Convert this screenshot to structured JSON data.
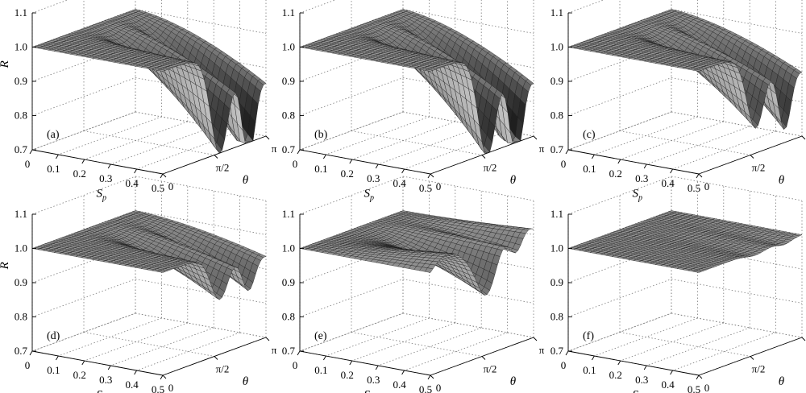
{
  "chart_data": [
    {
      "type": "surface",
      "panel_label": "(a)",
      "xlabel": "Sp",
      "ylabel": "θ",
      "zlabel": "R",
      "x_ticks": [
        "0",
        "0.1",
        "0.2",
        "0.3",
        "0.4",
        "0.5"
      ],
      "y_ticks": [
        "0",
        "π/2",
        "π"
      ],
      "z_ticks": [
        "0.7",
        "0.8",
        "0.9",
        "1.0",
        "1.1"
      ],
      "xlim": [
        0,
        0.5
      ],
      "ylim": [
        0,
        3.1416
      ],
      "zlim": [
        0.7,
        1.1
      ],
      "grid": true,
      "z_min_values": [
        0.72,
        0.73
      ],
      "z_at_edge_theta_pi": 0.77
    },
    {
      "type": "surface",
      "panel_label": "(b)",
      "xlabel": "Sp",
      "ylabel": "θ",
      "zlabel": "",
      "x_ticks": [
        "0",
        "0.1",
        "0.2",
        "0.3",
        "0.4",
        "0.5"
      ],
      "y_ticks": [
        "0",
        "π/2",
        "π"
      ],
      "z_ticks": [
        "0.7",
        "0.8",
        "0.9",
        "1.0",
        "1.1"
      ],
      "xlim": [
        0,
        0.5
      ],
      "ylim": [
        0,
        3.1416
      ],
      "zlim": [
        0.7,
        1.1
      ],
      "grid": true,
      "z_min_values": [
        0.71,
        0.72
      ],
      "z_at_edge_theta_pi": 0.77
    },
    {
      "type": "surface",
      "panel_label": "(c)",
      "xlabel": "Sp",
      "ylabel": "θ",
      "zlabel": "",
      "x_ticks": [
        "0",
        "0.1",
        "0.2",
        "0.3",
        "0.4",
        "0.5"
      ],
      "y_ticks": [
        "0",
        "π/2",
        "π"
      ],
      "z_ticks": [
        "0.7",
        "0.8",
        "0.9",
        "1.0",
        "1.1"
      ],
      "xlim": [
        0,
        0.5
      ],
      "ylim": [
        0,
        3.1416
      ],
      "zlim": [
        0.7,
        1.1
      ],
      "grid": true,
      "z_min_values": [
        0.79,
        0.8
      ],
      "z_at_edge_theta_pi": 0.82
    },
    {
      "type": "surface",
      "panel_label": "(d)",
      "xlabel": "Sp",
      "ylabel": "θ",
      "zlabel": "R",
      "x_ticks": [
        "0",
        "0.1",
        "0.2",
        "0.3",
        "0.4",
        "0.5"
      ],
      "y_ticks": [
        "0",
        "π/2",
        "π"
      ],
      "z_ticks": [
        "0.7",
        "0.8",
        "0.9",
        "1.0",
        "1.1"
      ],
      "xlim": [
        0,
        0.5
      ],
      "ylim": [
        0,
        3.1416
      ],
      "zlim": [
        0.7,
        1.1
      ],
      "grid": true,
      "z_min_values": [
        0.87,
        0.89
      ],
      "z_at_edge_theta_pi": 0.9
    },
    {
      "type": "surface",
      "panel_label": "(e)",
      "xlabel": "Sp",
      "ylabel": "θ",
      "zlabel": "",
      "x_ticks": [
        "0",
        "0.1",
        "0.2",
        "0.3",
        "0.4",
        "0.5"
      ],
      "y_ticks": [
        "0",
        "π/2",
        "π"
      ],
      "z_ticks": [
        "0.7",
        "0.8",
        "0.9",
        "1.0",
        "1.1"
      ],
      "xlim": [
        0,
        0.5
      ],
      "ylim": [
        0,
        3.1416
      ],
      "zlim": [
        0.7,
        1.1
      ],
      "grid": true,
      "z_min_values": [
        0.88,
        0.9
      ],
      "z_at_edge_theta_pi": 1.04
    },
    {
      "type": "surface",
      "panel_label": "(f)",
      "xlabel": "Sp",
      "ylabel": "θ",
      "zlabel": "",
      "x_ticks": [
        "0",
        "0.1",
        "0.2",
        "0.3",
        "0.4",
        "0.5"
      ],
      "y_ticks": [
        "0",
        "π/2",
        "π"
      ],
      "z_ticks": [
        "0.7",
        "0.8",
        "0.9",
        "1.0",
        "1.1"
      ],
      "xlim": [
        0,
        0.5
      ],
      "ylim": [
        0,
        3.1416
      ],
      "zlim": [
        0.7,
        1.1
      ],
      "grid": true,
      "z_min_values": [
        0.99,
        0.99
      ],
      "z_at_edge_theta_pi": 1.0
    }
  ]
}
